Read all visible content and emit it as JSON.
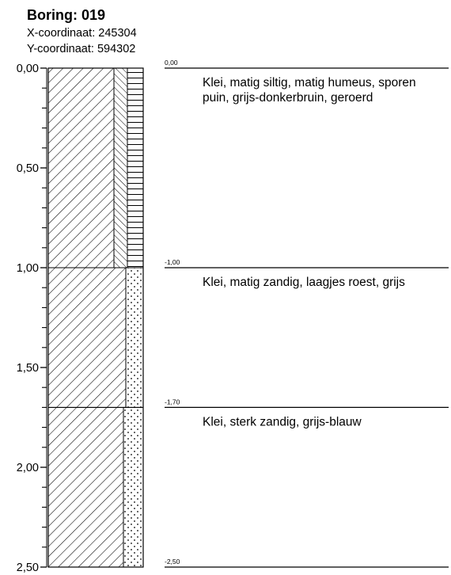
{
  "boring": {
    "title": "Boring: 019",
    "x_coordinate": "X-coordinaat: 245304",
    "y_coordinate": "Y-coordinaat: 594302"
  },
  "depth_axis": {
    "min": 0.0,
    "max": 2.5,
    "minor_step": 0.1,
    "major_labels": [
      "0,00",
      "0,50",
      "1,00",
      "1,50",
      "2,00",
      "2,50"
    ]
  },
  "layers": [
    {
      "top": 0.0,
      "bottom": 1.0,
      "top_label": "0,00",
      "description": [
        "Klei, matig siltig, matig humeus, sporen",
        "puin, grijs-donkerbruin, geroerd"
      ],
      "patterns": [
        "clay",
        "silt",
        "humus"
      ]
    },
    {
      "top": 1.0,
      "bottom": 1.7,
      "top_label": "-1,00",
      "description": [
        "Klei, matig zandig, laagjes roest, grijs"
      ],
      "patterns": [
        "clay",
        "sand"
      ]
    },
    {
      "top": 1.7,
      "bottom": 2.5,
      "top_label": "-1,70",
      "description": [
        "Klei, sterk zandig, grijs-blauw"
      ],
      "patterns": [
        "clay",
        "sand"
      ]
    }
  ],
  "end_label": "-2,50",
  "colors": {
    "ink": "#000000",
    "paper": "#ffffff"
  }
}
